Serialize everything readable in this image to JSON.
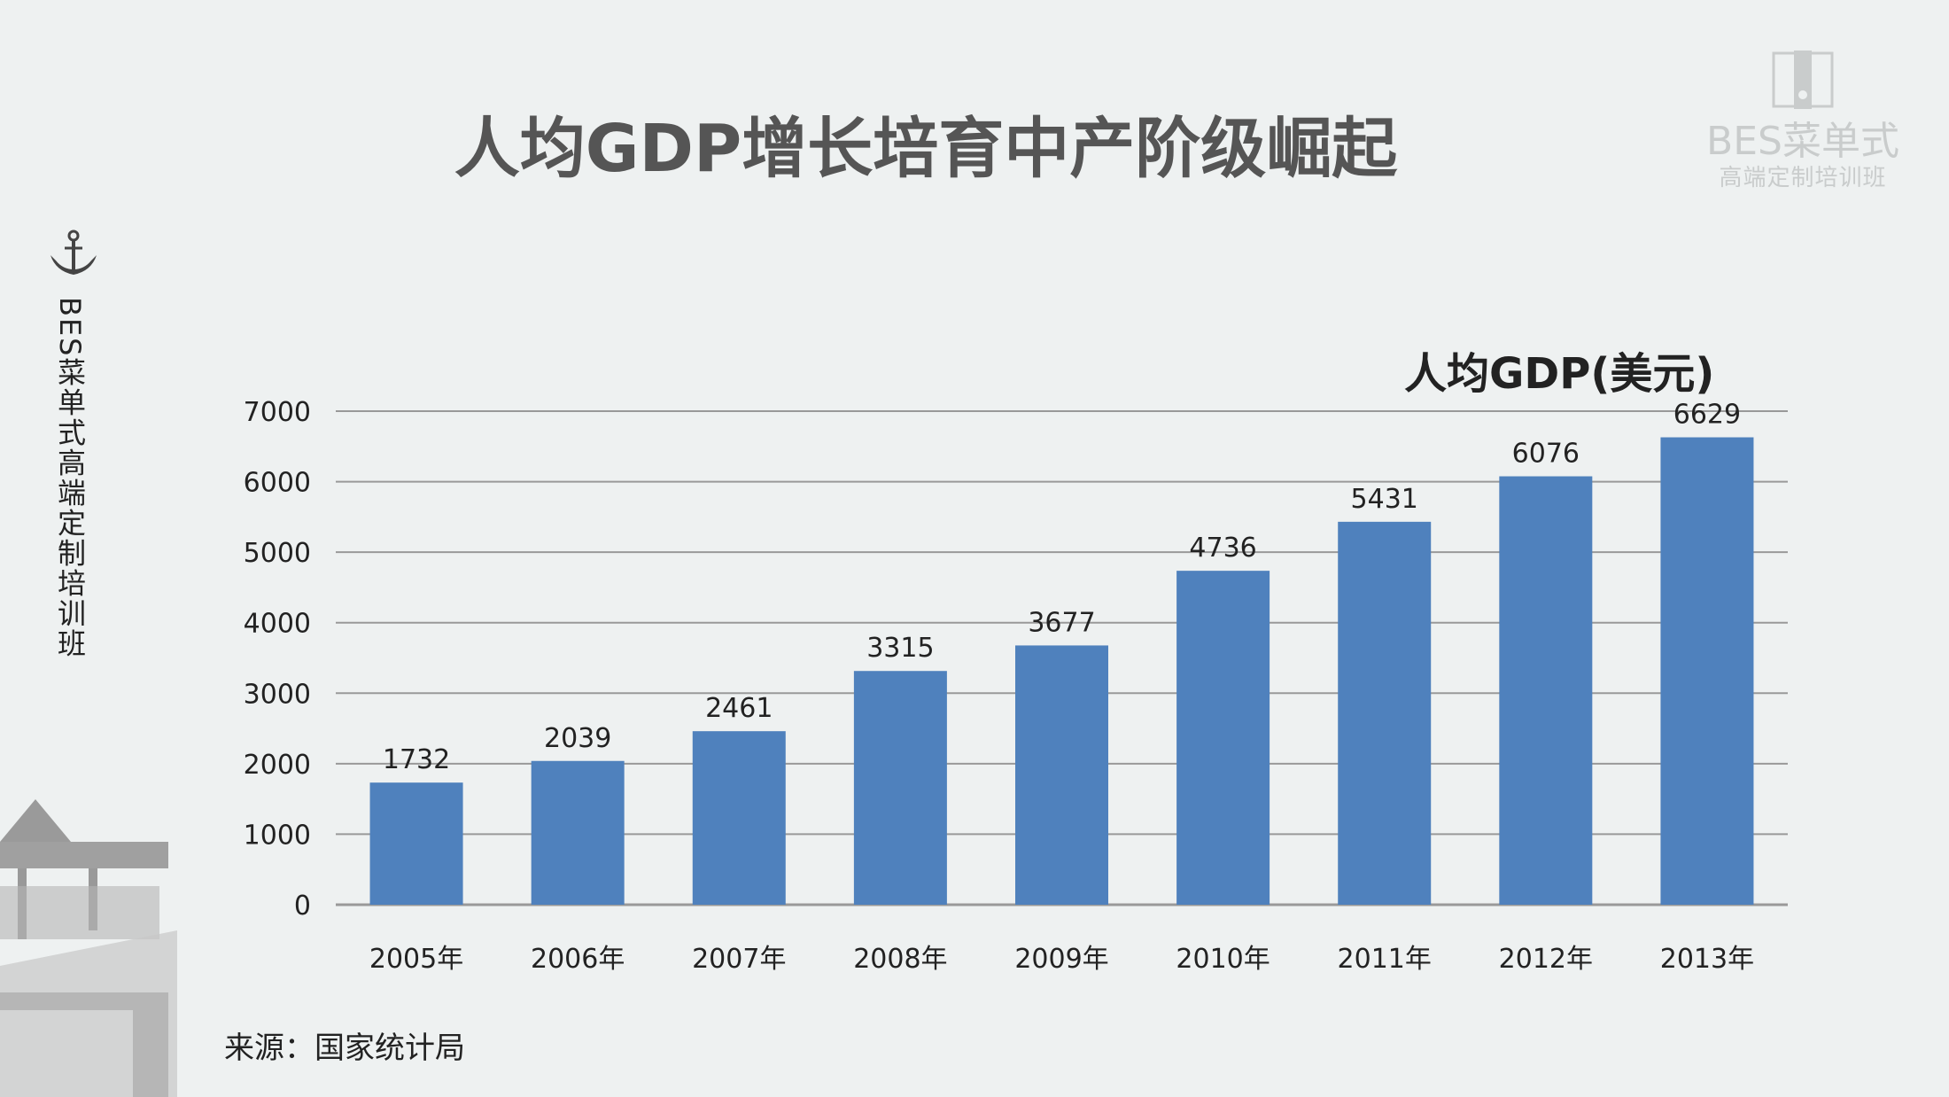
{
  "logo": {
    "line1": "BES菜单式",
    "line2": "高端定制培训班"
  },
  "side_text": "BES菜单式高端定制培训班",
  "source": "来源：国家统计局",
  "chart_data": {
    "type": "bar",
    "title": "人均GDP增长培育中产阶级崛起",
    "series_label": "人均GDP(美元)",
    "categories": [
      "2005年",
      "2006年",
      "2007年",
      "2008年",
      "2009年",
      "2010年",
      "2011年",
      "2012年",
      "2013年"
    ],
    "values": [
      1732,
      2039,
      2461,
      3315,
      3677,
      4736,
      5431,
      6076,
      6629
    ],
    "ylim": [
      0,
      7000
    ],
    "yticks": [
      0,
      1000,
      2000,
      3000,
      4000,
      5000,
      6000,
      7000
    ],
    "grid": true,
    "bar_color": "#4f81bd",
    "grid_color": "#999999"
  }
}
